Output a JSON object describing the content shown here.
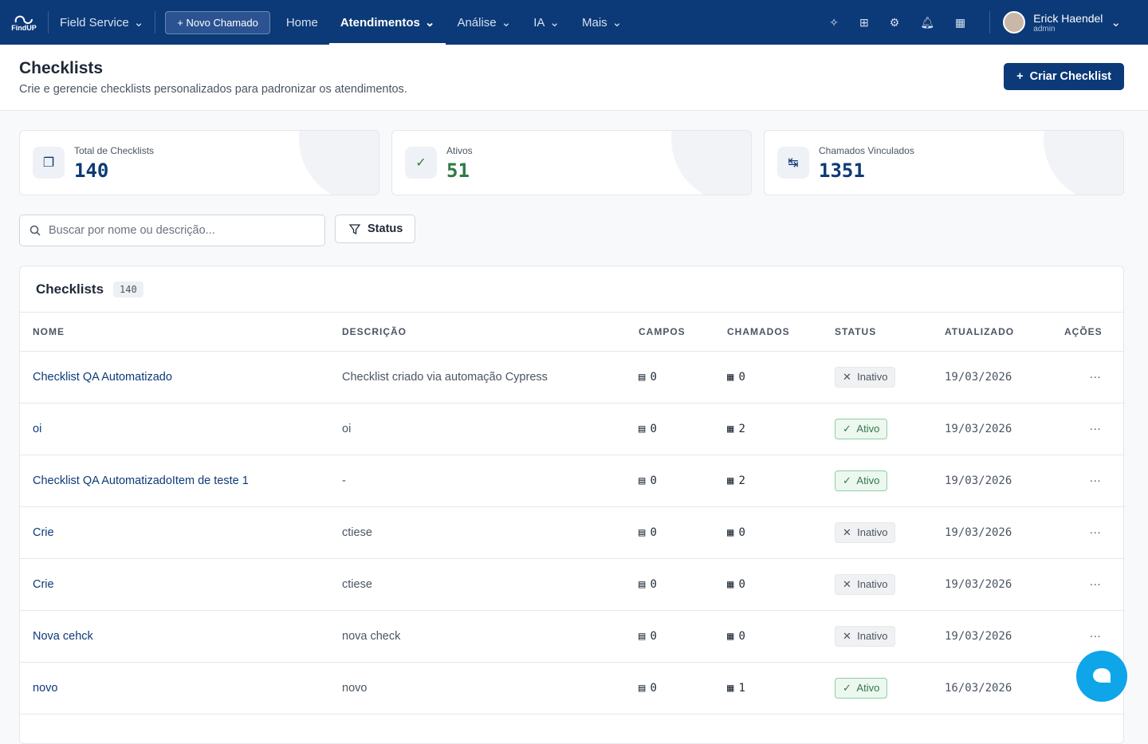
{
  "nav": {
    "logo": "FindUP",
    "app": "Field Service",
    "new_call": "Novo Chamado",
    "items": [
      "Home",
      "Atendimentos",
      "Análise",
      "IA",
      "Mais"
    ],
    "user": {
      "name": "Erick Haendel",
      "role": "admin"
    }
  },
  "header": {
    "title": "Checklists",
    "subtitle": "Crie e gerencie checklists personalizados para padronizar os atendimentos.",
    "create_button": "Criar Checklist"
  },
  "stats": [
    {
      "label": "Total de Checklists",
      "value": 140
    },
    {
      "label": "Ativos",
      "value": 51
    },
    {
      "label": "Chamados Vinculados",
      "value": 1351
    }
  ],
  "search": {
    "placeholder": "Buscar por nome ou descrição..."
  },
  "filter": "Status",
  "table": {
    "title": "Checklists",
    "count": 140,
    "columns": [
      "NOME",
      "DESCRIÇÃO",
      "CAMPOS",
      "CHAMADOS",
      "STATUS",
      "ATUALIZADO",
      "AÇÕES"
    ],
    "rows": [
      [
        "Checklist QA Automatizado",
        "Checklist criado via automação Cypress",
        0,
        0,
        "Inativo",
        "19/03/2026"
      ],
      [
        "oi",
        "oi",
        0,
        2,
        "Ativo",
        "19/03/2026"
      ],
      [
        "Checklist QA AutomatizadoItem de teste 1",
        "-",
        0,
        2,
        "Ativo",
        "19/03/2026"
      ],
      [
        "Crie",
        "ctiese",
        0,
        0,
        "Inativo",
        "19/03/2026"
      ],
      [
        "Crie",
        "ctiese",
        0,
        0,
        "Inativo",
        "19/03/2026"
      ],
      [
        "Nova cehck",
        "nova check",
        0,
        0,
        "Inativo",
        "19/03/2026"
      ],
      [
        "novo",
        "novo",
        0,
        1,
        "Ativo",
        "16/03/2026"
      ]
    ]
  }
}
